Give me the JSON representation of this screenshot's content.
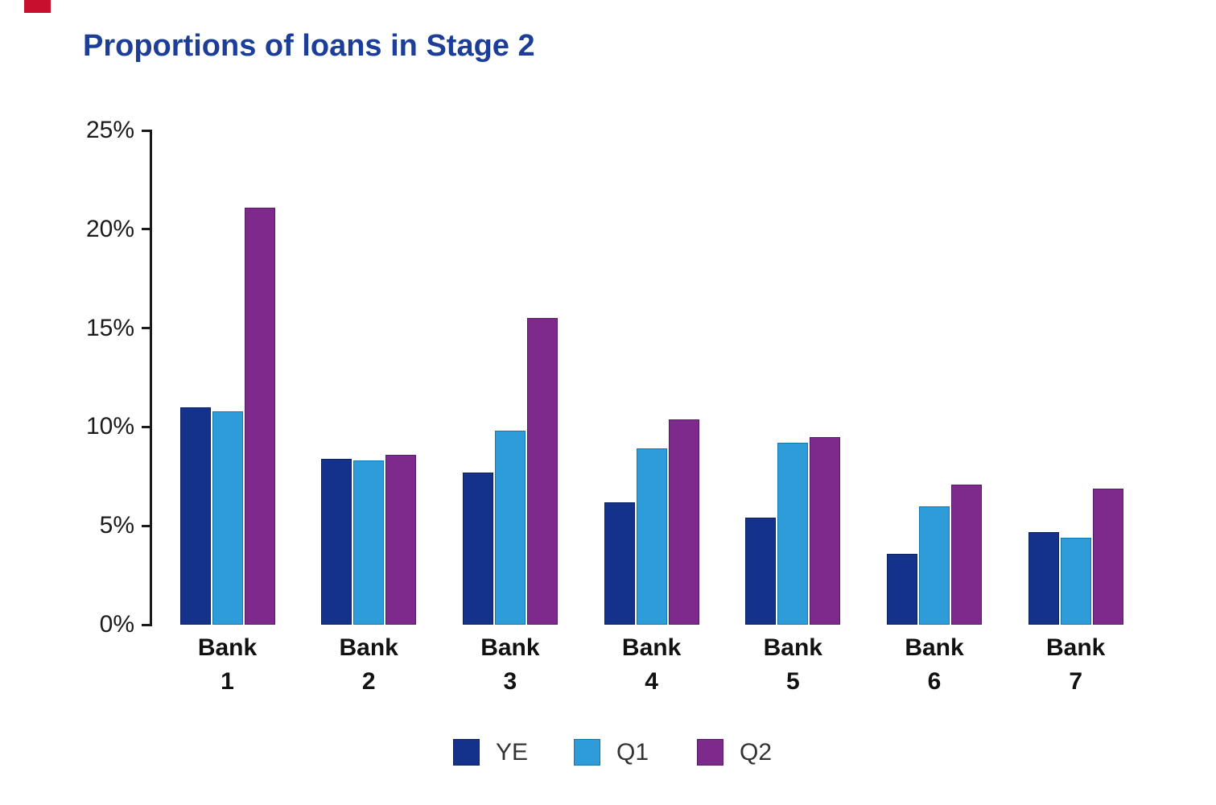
{
  "decor": {
    "red_mark_color": "#C8102E"
  },
  "title": "Proportions of loans in Stage 2",
  "title_color": "#1C3E99",
  "chart_data": {
    "type": "bar",
    "title": "Proportions of loans in Stage 2",
    "categories": [
      "Bank 1",
      "Bank 2",
      "Bank 3",
      "Bank 4",
      "Bank 5",
      "Bank 6",
      "Bank 7"
    ],
    "series": [
      {
        "name": "YE",
        "color": "#15328B",
        "border": "#0D2161",
        "values": [
          11.0,
          8.4,
          7.7,
          6.2,
          5.4,
          3.6,
          4.7
        ]
      },
      {
        "name": "Q1",
        "color": "#2D9CD9",
        "border": "#1478AE",
        "values": [
          10.8,
          8.3,
          9.8,
          8.9,
          9.2,
          6.0,
          4.4
        ]
      },
      {
        "name": "Q2",
        "color": "#7E2A8C",
        "border": "#571D62",
        "values": [
          21.1,
          8.6,
          15.5,
          10.4,
          9.5,
          7.1,
          6.9
        ]
      }
    ],
    "xlabel": "",
    "ylabel": "",
    "ylim": [
      0,
      25
    ],
    "yticks": [
      0,
      5,
      10,
      15,
      20,
      25
    ],
    "ytick_labels": [
      "0%",
      "5%",
      "10%",
      "15%",
      "20%",
      "25%"
    ],
    "grid": false,
    "legend_position": "bottom"
  },
  "legend": {
    "items": [
      "YE",
      "Q1",
      "Q2"
    ]
  }
}
